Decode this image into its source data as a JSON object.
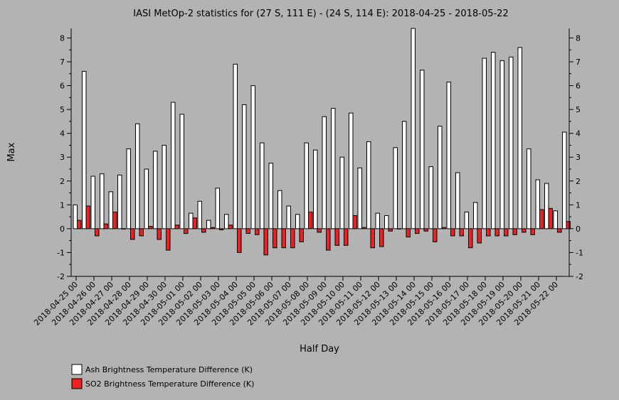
{
  "chart_data": {
    "type": "bar",
    "title": "IASI MetOp-2 statistics for (27 S, 111 E) - (24 S, 114 E): 2018-04-25 - 2018-05-22",
    "xlabel": "Half Day",
    "ylabel": "Max",
    "ylim": [
      -2,
      8.4
    ],
    "yticks": [
      "-2",
      "-1",
      "0",
      "1",
      "2",
      "3",
      "4",
      "5",
      "6",
      "7",
      "8"
    ],
    "categories": [
      "2018-04-25 00",
      "2018-04-25 12",
      "2018-04-26 00",
      "2018-04-26 12",
      "2018-04-27 00",
      "2018-04-27 12",
      "2018-04-28 00",
      "2018-04-28 12",
      "2018-04-29 00",
      "2018-04-29 12",
      "2018-04-30 00",
      "2018-04-30 12",
      "2018-05-01 00",
      "2018-05-01 12",
      "2018-05-02 00",
      "2018-05-02 12",
      "2018-05-03 00",
      "2018-05-03 12",
      "2018-05-04 00",
      "2018-05-04 12",
      "2018-05-05 00",
      "2018-05-05 12",
      "2018-05-06 00",
      "2018-05-06 12",
      "2018-05-07 00",
      "2018-05-07 12",
      "2018-05-08 00",
      "2018-05-08 12",
      "2018-05-09 00",
      "2018-05-09 12",
      "2018-05-10 00",
      "2018-05-10 12",
      "2018-05-11 00",
      "2018-05-11 12",
      "2018-05-12 00",
      "2018-05-12 12",
      "2018-05-13 00",
      "2018-05-13 12",
      "2018-05-14 00",
      "2018-05-14 12",
      "2018-05-15 00",
      "2018-05-15 12",
      "2018-05-16 00",
      "2018-05-16 12",
      "2018-05-17 00",
      "2018-05-17 12",
      "2018-05-18 00",
      "2018-05-18 12",
      "2018-05-19 00",
      "2018-05-19 12",
      "2018-05-20 00",
      "2018-05-20 12",
      "2018-05-21 00",
      "2018-05-21 12",
      "2018-05-22 00",
      "2018-05-22 12"
    ],
    "xtick_labels": [
      "2018-04-25 00",
      "2018-04-26 00",
      "2018-04-27 00",
      "2018-04-28 00",
      "2018-04-29 00",
      "2018-04-30 00",
      "2018-05-01 00",
      "2018-05-02 00",
      "2018-05-03 00",
      "2018-05-04 00",
      "2018-05-05 00",
      "2018-05-06 00",
      "2018-05-07 00",
      "2018-05-08 00",
      "2018-05-09 00",
      "2018-05-10 00",
      "2018-05-11 00",
      "2018-05-12 00",
      "2018-05-13 00",
      "2018-05-14 00",
      "2018-05-15 00",
      "2018-05-16 00",
      "2018-05-17 00",
      "2018-05-18 00",
      "2018-05-19 00",
      "2018-05-20 00",
      "2018-05-21 00",
      "2018-05-22 00"
    ],
    "series": [
      {
        "name": "Ash Brightness Temperature Difference (K)",
        "color": "#ffffff",
        "values": [
          1.0,
          6.6,
          2.2,
          2.3,
          1.55,
          2.25,
          3.35,
          4.4,
          2.5,
          3.25,
          3.5,
          5.3,
          4.8,
          0.65,
          1.15,
          0.35,
          1.7,
          0.6,
          6.9,
          5.2,
          6.0,
          3.6,
          2.75,
          1.6,
          0.95,
          0.6,
          3.6,
          3.3,
          4.7,
          5.05,
          3.0,
          4.85,
          2.55,
          3.65,
          0.65,
          0.55,
          3.4,
          4.5,
          8.4,
          6.65,
          2.6,
          4.3,
          6.15,
          2.35,
          0.7,
          1.1,
          7.15,
          7.4,
          7.05,
          7.2,
          7.6,
          3.35,
          2.05,
          1.9,
          0.75,
          4.05
        ]
      },
      {
        "name": "SO2 Brightness Temperature Difference (K)",
        "color": "#ee2222",
        "values": [
          0.35,
          0.95,
          -0.3,
          0.2,
          0.7,
          0.0,
          -0.45,
          -0.3,
          0.1,
          -0.45,
          -0.9,
          0.15,
          -0.2,
          0.45,
          -0.15,
          0.05,
          -0.05,
          0.15,
          -1.0,
          -0.2,
          -0.25,
          -1.1,
          -0.8,
          -0.8,
          -0.8,
          -0.55,
          0.7,
          -0.15,
          -0.9,
          -0.7,
          -0.7,
          0.55,
          0.05,
          -0.8,
          -0.75,
          -0.1,
          0.0,
          -0.35,
          -0.2,
          -0.1,
          -0.55,
          0.05,
          -0.3,
          -0.3,
          -0.8,
          -0.6,
          -0.3,
          -0.3,
          -0.3,
          -0.25,
          -0.15,
          -0.25,
          0.8,
          0.85,
          -0.15,
          0.3
        ]
      }
    ],
    "grid": false,
    "legend_position": "bottom-left"
  }
}
